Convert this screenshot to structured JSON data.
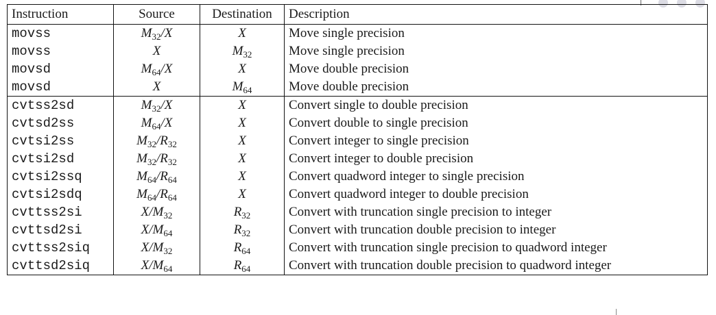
{
  "table": {
    "headers": [
      "Instruction",
      "Source",
      "Destination",
      "Description"
    ],
    "rows": [
      {
        "instruction": "movss",
        "source": [
          [
            "M",
            "32"
          ],
          [
            "/X",
            ""
          ]
        ],
        "destination": [
          [
            "X",
            ""
          ]
        ],
        "description": "Move single precision"
      },
      {
        "instruction": "movss",
        "source": [
          [
            "X",
            ""
          ]
        ],
        "destination": [
          [
            "M",
            "32"
          ]
        ],
        "description": "Move single precision"
      },
      {
        "instruction": "movsd",
        "source": [
          [
            "M",
            "64"
          ],
          [
            "/X",
            ""
          ]
        ],
        "destination": [
          [
            "X",
            ""
          ]
        ],
        "description": "Move double precision"
      },
      {
        "instruction": "movsd",
        "source": [
          [
            "X",
            ""
          ]
        ],
        "destination": [
          [
            "M",
            "64"
          ]
        ],
        "description": "Move double precision"
      },
      {
        "instruction": "cvtss2sd",
        "source": [
          [
            "M",
            "32"
          ],
          [
            "/X",
            ""
          ]
        ],
        "destination": [
          [
            "X",
            ""
          ]
        ],
        "description": "Convert single to double precision",
        "group_start": true
      },
      {
        "instruction": "cvtsd2ss",
        "source": [
          [
            "M",
            "64"
          ],
          [
            "/X",
            ""
          ]
        ],
        "destination": [
          [
            "X",
            ""
          ]
        ],
        "description": "Convert double to single precision"
      },
      {
        "instruction": "cvtsi2ss",
        "source": [
          [
            "M",
            "32"
          ],
          [
            "/R",
            "32"
          ]
        ],
        "destination": [
          [
            "X",
            ""
          ]
        ],
        "description": "Convert integer to single precision"
      },
      {
        "instruction": "cvtsi2sd",
        "source": [
          [
            "M",
            "32"
          ],
          [
            "/R",
            "32"
          ]
        ],
        "destination": [
          [
            "X",
            ""
          ]
        ],
        "description": "Convert integer to double precision"
      },
      {
        "instruction": "cvtsi2ssq",
        "source": [
          [
            "M",
            "64"
          ],
          [
            "/R",
            "64"
          ]
        ],
        "destination": [
          [
            "X",
            ""
          ]
        ],
        "description": "Convert quadword integer to single precision"
      },
      {
        "instruction": "cvtsi2sdq",
        "source": [
          [
            "M",
            "64"
          ],
          [
            "/R",
            "64"
          ]
        ],
        "destination": [
          [
            "X",
            ""
          ]
        ],
        "description": "Convert quadword integer to double precision"
      },
      {
        "instruction": "cvttss2si",
        "source": [
          [
            "X/M",
            "32"
          ]
        ],
        "destination": [
          [
            "R",
            "32"
          ]
        ],
        "description": "Convert with truncation single precision to integer"
      },
      {
        "instruction": "cvttsd2si",
        "source": [
          [
            "X/M",
            "64"
          ]
        ],
        "destination": [
          [
            "R",
            "32"
          ]
        ],
        "description": "Convert with truncation double precision to integer"
      },
      {
        "instruction": "cvttss2siq",
        "source": [
          [
            "X/M",
            "32"
          ]
        ],
        "destination": [
          [
            "R",
            "64"
          ]
        ],
        "description": "Convert with truncation single precision to quadword integer"
      },
      {
        "instruction": "cvttsd2siq",
        "source": [
          [
            "X/M",
            "64"
          ]
        ],
        "destination": [
          [
            "R",
            "64"
          ]
        ],
        "description": "Convert with truncation double precision to quadword integer"
      }
    ]
  }
}
